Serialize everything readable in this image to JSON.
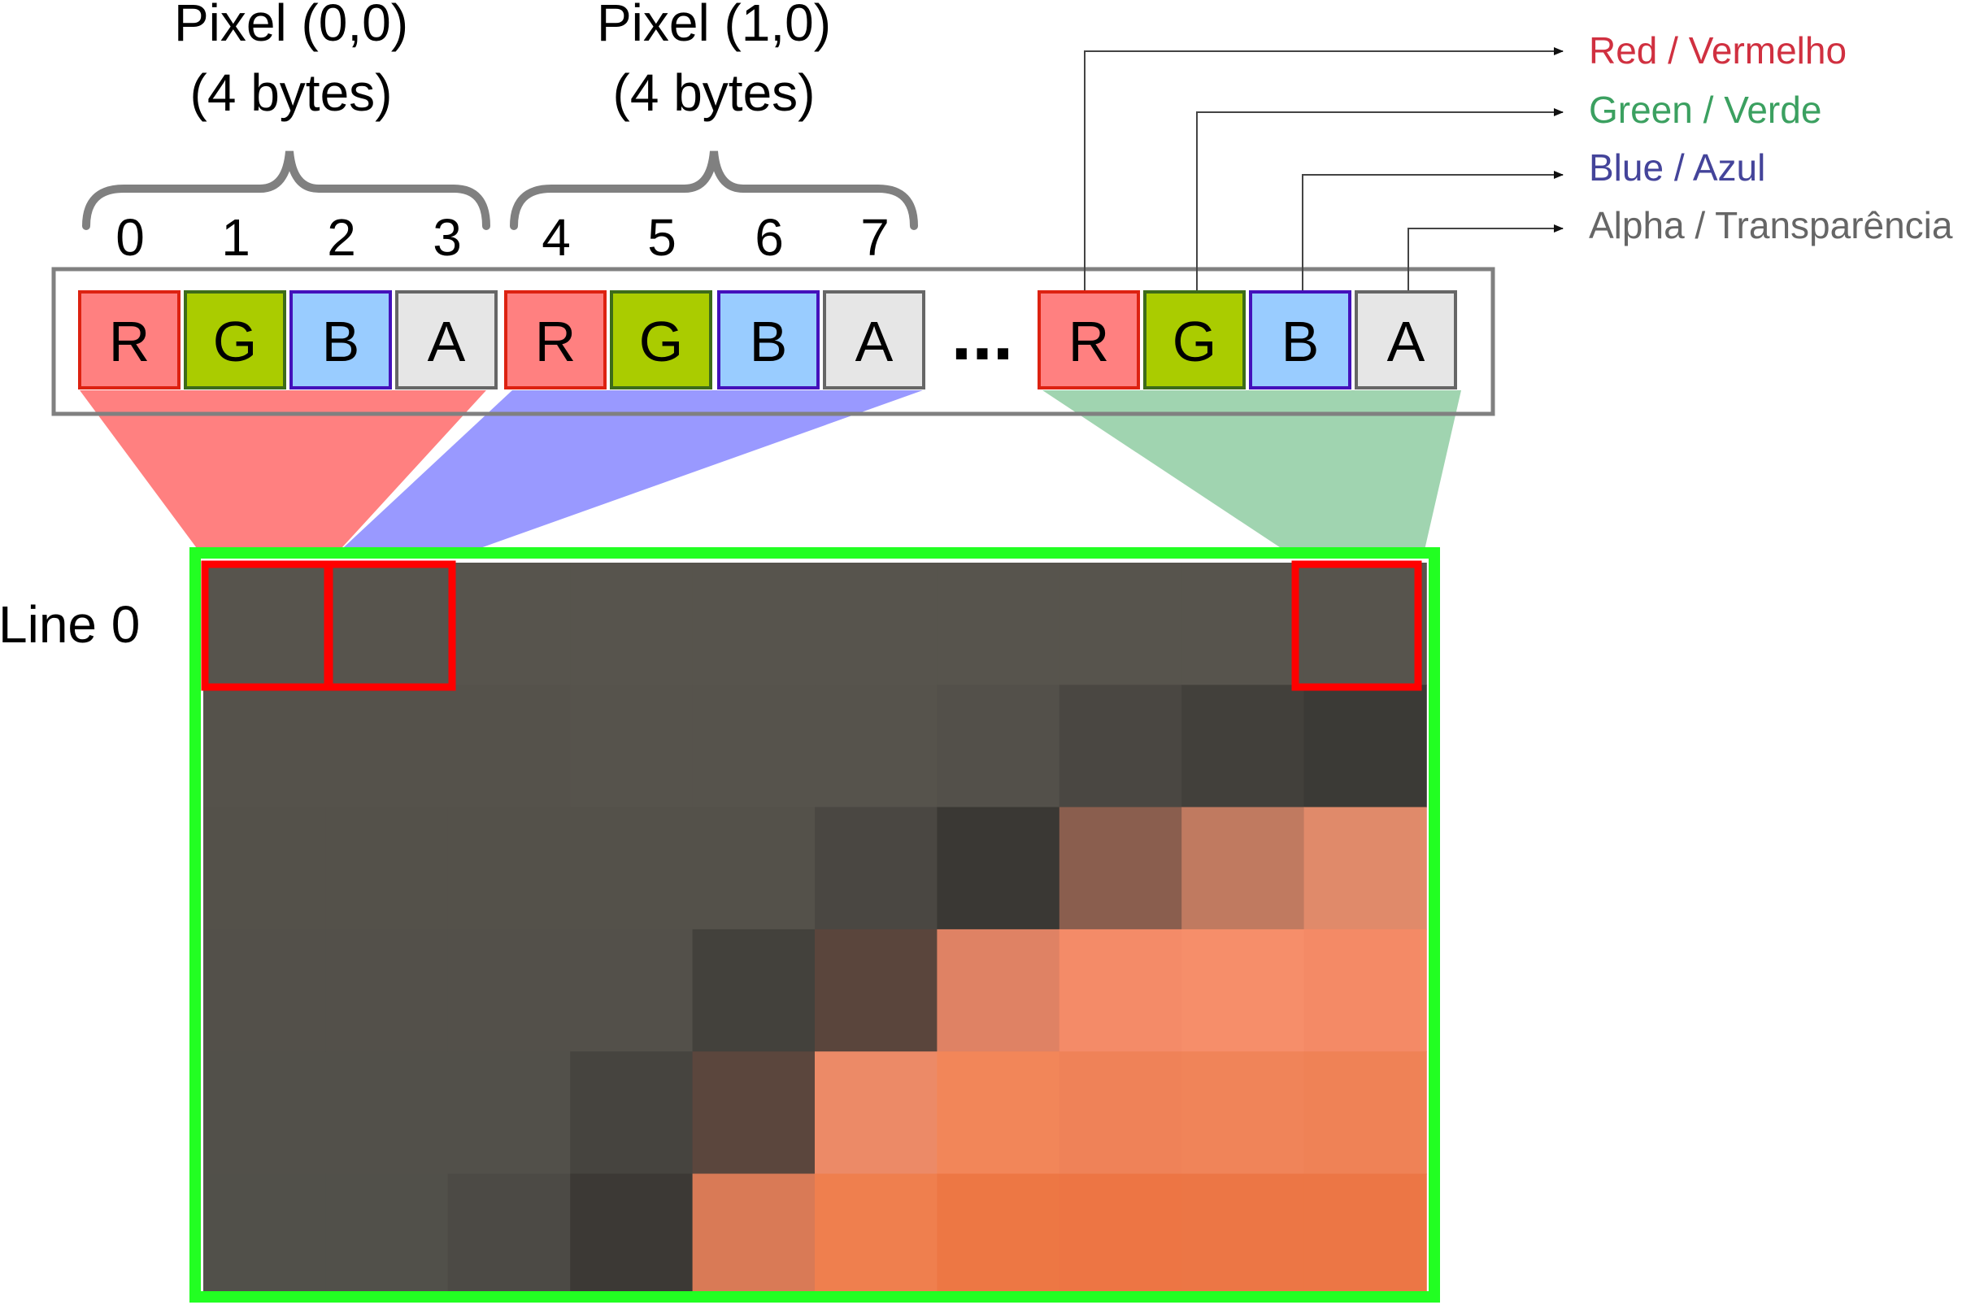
{
  "pixel_labels": [
    {
      "line1": "Pixel (0,0)",
      "line2": "(4 bytes)"
    },
    {
      "line1": "Pixel (1,0)",
      "line2": "(4 bytes)"
    }
  ],
  "byte_indices": [
    "0",
    "1",
    "2",
    "3",
    "4",
    "5",
    "6",
    "7"
  ],
  "channels": [
    {
      "letter": "R",
      "fill": "#ff8080",
      "stroke": "#dd2211"
    },
    {
      "letter": "G",
      "fill": "#aacc00",
      "stroke": "#3d6b1a"
    },
    {
      "letter": "B",
      "fill": "#99ccff",
      "stroke": "#4411bb"
    },
    {
      "letter": "A",
      "fill": "#e6e6e6",
      "stroke": "#666666"
    }
  ],
  "ellipsis": "...",
  "legend": [
    {
      "label": "Red / Vermelho",
      "color": "#d03040"
    },
    {
      "label": "Green / Verde",
      "color": "#3ba060"
    },
    {
      "label": "Blue / Azul",
      "color": "#44449a"
    },
    {
      "label": "Alpha / Transparência",
      "color": "#666666"
    }
  ],
  "line_label": "Line 0",
  "colors": {
    "frame_border": "#22ff22",
    "pixel_highlight": "#ff0000",
    "map_red": "#ff8080",
    "map_blue": "#9999ff",
    "map_green": "#a0d4b0",
    "byte_row_border": "#808080",
    "brace": "#808080"
  },
  "image_pixels": [
    [
      "#57544d",
      "#57544d",
      "#57544d",
      "#57544d",
      "#57544d",
      "#57544d",
      "#57544d",
      "#57544d",
      "#57544d",
      "#57544d"
    ],
    [
      "#55524b",
      "#55524b",
      "#55524b",
      "#56534c",
      "#56534c",
      "#56534c",
      "#53504a",
      "#4a4742",
      "#42403b",
      "#3b3a36"
    ],
    [
      "#54514a",
      "#54514a",
      "#54514a",
      "#54514a",
      "#54514a",
      "#4a4742",
      "#3a3834",
      "#8a5e4e",
      "#c07a60",
      "#e08a6a"
    ],
    [
      "#53504a",
      "#53504a",
      "#53504a",
      "#53504a",
      "#43413c",
      "#5a453c",
      "#df8264",
      "#f48b68",
      "#f68e6a",
      "#f48a66"
    ],
    [
      "#52504a",
      "#52504a",
      "#52504a",
      "#46443f",
      "#5b463d",
      "#ec8a67",
      "#f28659",
      "#ef8258",
      "#f08459",
      "#ef8256"
    ],
    [
      "#51504a",
      "#51504a",
      "#4c4a45",
      "#3c3935",
      "#d97a56",
      "#ef7f4e",
      "#ed7744",
      "#ed7544",
      "#ec7645",
      "#ec7645"
    ]
  ]
}
